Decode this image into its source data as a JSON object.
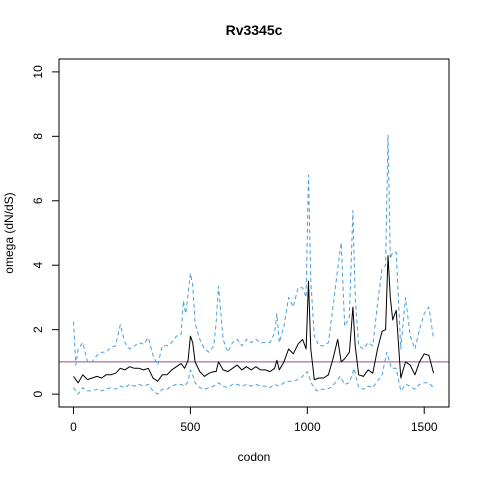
{
  "chart_data": {
    "type": "line",
    "title": "Rv3345c",
    "xlabel": "codon",
    "ylabel": "omega (dN/dS)",
    "xlim": [
      -62,
      1606
    ],
    "ylim": [
      -0.4,
      10.4
    ],
    "x_ticks": [
      0,
      500,
      1000,
      1500
    ],
    "y_ticks": [
      0,
      2,
      4,
      6,
      8,
      10
    ],
    "reference_line": {
      "y": 1,
      "color": "#9e4a8c"
    },
    "colors": {
      "mean": "#000000",
      "bounds": "#4a9fdc"
    },
    "series": [
      {
        "style": "solid",
        "x": [
          0,
          20,
          40,
          60,
          80,
          100,
          120,
          140,
          160,
          180,
          200,
          220,
          240,
          260,
          280,
          300,
          320,
          340,
          360,
          380,
          400,
          420,
          440,
          460,
          475,
          490,
          500,
          510,
          520,
          540,
          560,
          580,
          600,
          610,
          620,
          640,
          660,
          680,
          700,
          720,
          740,
          760,
          780,
          800,
          820,
          840,
          860,
          870,
          880,
          900,
          920,
          940,
          960,
          980,
          995,
          1005,
          1015,
          1030,
          1050,
          1070,
          1090,
          1110,
          1130,
          1145,
          1160,
          1180,
          1195,
          1205,
          1220,
          1240,
          1260,
          1280,
          1300,
          1320,
          1335,
          1345,
          1355,
          1365,
          1380,
          1400,
          1420,
          1440,
          1460,
          1480,
          1500,
          1520,
          1540
        ],
        "y": [
          0.55,
          0.35,
          0.6,
          0.45,
          0.5,
          0.55,
          0.5,
          0.6,
          0.6,
          0.65,
          0.8,
          0.75,
          0.85,
          0.8,
          0.8,
          0.75,
          0.8,
          0.5,
          0.4,
          0.6,
          0.6,
          0.75,
          0.85,
          0.95,
          0.8,
          1.05,
          1.8,
          1.6,
          1.0,
          0.7,
          0.55,
          0.65,
          0.7,
          0.7,
          1.0,
          0.75,
          0.7,
          0.8,
          0.9,
          0.75,
          0.85,
          0.75,
          0.85,
          0.75,
          0.75,
          0.7,
          0.8,
          1.05,
          0.75,
          1.0,
          1.4,
          1.25,
          1.55,
          1.7,
          1.4,
          3.5,
          1.4,
          0.45,
          0.5,
          0.5,
          0.6,
          1.1,
          1.7,
          1.0,
          1.1,
          1.3,
          2.7,
          1.5,
          0.6,
          0.55,
          0.75,
          0.65,
          1.4,
          1.95,
          2.0,
          4.3,
          3.0,
          2.3,
          2.6,
          0.5,
          1.0,
          0.9,
          0.6,
          1.0,
          1.25,
          1.2,
          0.65
        ]
      },
      {
        "style": "dashed",
        "x": [
          0,
          10,
          20,
          40,
          60,
          80,
          100,
          120,
          140,
          160,
          180,
          200,
          220,
          240,
          260,
          280,
          300,
          320,
          340,
          360,
          380,
          400,
          420,
          440,
          460,
          470,
          480,
          490,
          500,
          510,
          520,
          540,
          560,
          580,
          600,
          610,
          620,
          640,
          660,
          680,
          700,
          720,
          740,
          760,
          780,
          800,
          820,
          840,
          860,
          870,
          880,
          900,
          920,
          940,
          960,
          980,
          995,
          1005,
          1015,
          1030,
          1050,
          1070,
          1090,
          1110,
          1130,
          1145,
          1160,
          1180,
          1195,
          1205,
          1220,
          1240,
          1260,
          1280,
          1300,
          1320,
          1335,
          1345,
          1355,
          1365,
          1380,
          1400,
          1420,
          1440,
          1460,
          1480,
          1500,
          1520,
          1540
        ],
        "y": [
          2.25,
          0.9,
          1.4,
          1.6,
          1.0,
          1.0,
          1.2,
          1.3,
          1.3,
          1.45,
          1.5,
          2.15,
          1.6,
          1.4,
          1.5,
          1.6,
          1.55,
          1.75,
          1.2,
          0.9,
          1.5,
          1.5,
          1.6,
          1.8,
          1.85,
          2.9,
          2.5,
          3.1,
          3.75,
          3.4,
          2.2,
          1.7,
          1.4,
          1.3,
          1.5,
          2.2,
          3.35,
          1.7,
          1.3,
          1.6,
          1.7,
          1.5,
          1.7,
          1.6,
          1.7,
          1.6,
          1.6,
          1.6,
          1.9,
          2.5,
          1.6,
          2.1,
          3.0,
          2.7,
          3.3,
          3.3,
          3.0,
          6.8,
          3.5,
          1.8,
          1.5,
          1.5,
          1.6,
          2.7,
          3.9,
          4.7,
          2.1,
          2.4,
          5.7,
          3.0,
          1.5,
          1.4,
          1.6,
          1.5,
          2.8,
          3.9,
          4.0,
          8.05,
          4.2,
          4.4,
          4.4,
          1.4,
          3.0,
          1.8,
          1.4,
          2.0,
          2.5,
          2.7,
          1.7
        ]
      },
      {
        "style": "dashed",
        "x": [
          0,
          20,
          40,
          60,
          80,
          100,
          120,
          140,
          160,
          180,
          200,
          220,
          240,
          260,
          280,
          300,
          320,
          340,
          360,
          380,
          400,
          420,
          440,
          460,
          475,
          490,
          500,
          510,
          520,
          540,
          560,
          580,
          600,
          620,
          640,
          660,
          680,
          700,
          720,
          740,
          760,
          780,
          800,
          820,
          840,
          860,
          880,
          900,
          920,
          940,
          960,
          980,
          1000,
          1020,
          1040,
          1060,
          1080,
          1100,
          1120,
          1140,
          1160,
          1180,
          1200,
          1220,
          1240,
          1260,
          1280,
          1300,
          1320,
          1340,
          1360,
          1380,
          1400,
          1420,
          1440,
          1460,
          1480,
          1500,
          1520,
          1540
        ],
        "y": [
          0.2,
          0.0,
          0.2,
          0.1,
          0.1,
          0.15,
          0.1,
          0.15,
          0.2,
          0.15,
          0.25,
          0.2,
          0.3,
          0.25,
          0.3,
          0.25,
          0.3,
          0.1,
          0.0,
          0.15,
          0.15,
          0.25,
          0.3,
          0.3,
          0.25,
          0.4,
          0.75,
          0.6,
          0.35,
          0.2,
          0.15,
          0.2,
          0.25,
          0.35,
          0.25,
          0.2,
          0.3,
          0.3,
          0.25,
          0.3,
          0.25,
          0.3,
          0.25,
          0.25,
          0.2,
          0.3,
          0.25,
          0.35,
          0.4,
          0.4,
          0.45,
          0.55,
          0.7,
          0.3,
          0.1,
          0.15,
          0.15,
          0.2,
          0.35,
          0.55,
          0.3,
          0.35,
          0.8,
          0.2,
          0.15,
          0.25,
          0.2,
          0.4,
          0.6,
          1.3,
          0.8,
          0.8,
          0.1,
          0.3,
          0.25,
          0.15,
          0.3,
          0.35,
          0.35,
          0.2
        ]
      }
    ]
  }
}
